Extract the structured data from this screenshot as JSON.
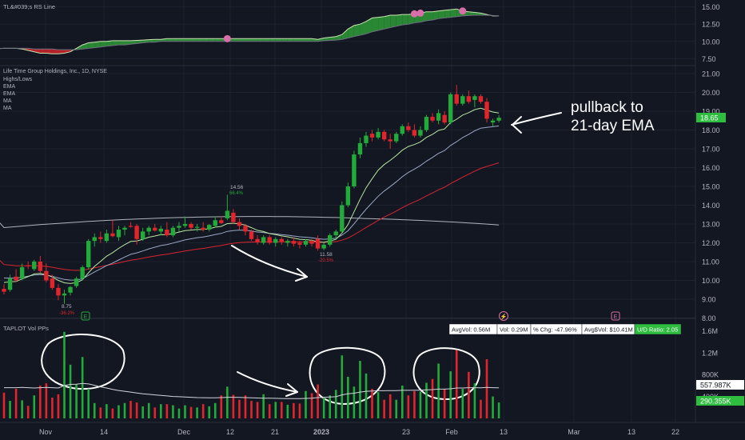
{
  "colors": {
    "background": "#131722",
    "grid": "#1e2230",
    "axis_text": "#b2b5be",
    "up": "#22ab3a",
    "down": "#e0252c",
    "ema_fast": "#b7e6a1",
    "ema_slow": "#9aa7c4",
    "ma_50": "#d9242f",
    "ma_200": "#b0b3bb",
    "rs_fill_up": "#2b8d36",
    "rs_fill_down": "#c0222a",
    "rs_marker": "#d86fa8",
    "annotation": "#ffffff",
    "price_badge": "#2ebd3e",
    "ud_badge": "#2ebd3e"
  },
  "rs_panel": {
    "title": "TL&#039;s RS Line",
    "y_ticks": [
      "15.00",
      "12.50",
      "10.00",
      "7.50"
    ]
  },
  "price_panel": {
    "title": "Life Time Group Holdings, Inc., 1D, NYSE",
    "legend": [
      "Highs/Lows",
      "EMA",
      "EMA",
      "MA",
      "MA"
    ],
    "y_ticks": [
      "21.00",
      "20.00",
      "19.00",
      "18.00",
      "17.00",
      "16.00",
      "15.00",
      "14.00",
      "13.00",
      "12.00",
      "11.00",
      "10.00",
      "9.00",
      "8.00"
    ],
    "last_price": "18.65",
    "high_label": {
      "price": "14.56",
      "pct": "66.4%"
    },
    "low_label_1": {
      "price": "8.75",
      "pct": "-36.2%"
    },
    "low_label_2": {
      "price": "11.58",
      "pct": "-20.5%"
    },
    "annotation_line1": "pullback to",
    "annotation_line2": "21-day EMA",
    "event_marker_1": "E",
    "event_marker_2": "E",
    "dividend_marker": "⚡"
  },
  "volume_panel": {
    "title": "TAPLOT Vol PPs",
    "stats": [
      {
        "label": "AvgVol: 0.56M"
      },
      {
        "label": "Vol: 0.29M"
      },
      {
        "label": "% Chg: -47.96%"
      },
      {
        "label": "Avg$Vol: $10.41M"
      },
      {
        "label": "U/D Ratio: 2.05"
      }
    ],
    "y_ticks": [
      "1.6M",
      "1.2M",
      "800K",
      "400K"
    ],
    "avg_badge": "557.987K",
    "vol_badge": "290.355K"
  },
  "x_axis": {
    "ticks": [
      "Nov",
      "14",
      "Dec",
      "12",
      "21",
      "2023",
      "23",
      "Feb",
      "13",
      "Mar",
      "13",
      "22"
    ]
  },
  "chart_data": {
    "type": "candlestick",
    "title": "Life Time Group Holdings, Inc., 1D, NYSE",
    "ylim": [
      7.5,
      21.5
    ],
    "volume_ylim": [
      0,
      1650000
    ],
    "rs_ylim": [
      6.5,
      16.0
    ],
    "candles": [
      {
        "o": 9.55,
        "h": 9.8,
        "l": 9.25,
        "c": 9.4
      },
      {
        "o": 9.5,
        "h": 10.3,
        "l": 9.4,
        "c": 10.1
      },
      {
        "o": 10.2,
        "h": 10.6,
        "l": 9.9,
        "c": 10.0
      },
      {
        "o": 10.1,
        "h": 10.9,
        "l": 10.0,
        "c": 10.7
      },
      {
        "o": 10.8,
        "h": 11.0,
        "l": 10.6,
        "c": 10.75
      },
      {
        "o": 10.6,
        "h": 11.1,
        "l": 10.5,
        "c": 11.0
      },
      {
        "o": 11.0,
        "h": 11.3,
        "l": 10.4,
        "c": 10.5
      },
      {
        "o": 10.5,
        "h": 10.9,
        "l": 9.9,
        "c": 10.0
      },
      {
        "o": 10.1,
        "h": 10.3,
        "l": 9.5,
        "c": 9.6
      },
      {
        "o": 9.6,
        "h": 9.8,
        "l": 8.95,
        "c": 9.2
      },
      {
        "o": 9.2,
        "h": 9.5,
        "l": 8.75,
        "c": 9.3
      },
      {
        "o": 9.35,
        "h": 9.7,
        "l": 9.2,
        "c": 9.65
      },
      {
        "o": 9.7,
        "h": 10.2,
        "l": 9.6,
        "c": 10.1
      },
      {
        "o": 10.1,
        "h": 10.8,
        "l": 10.0,
        "c": 10.7
      },
      {
        "o": 10.7,
        "h": 12.2,
        "l": 10.6,
        "c": 12.1
      },
      {
        "o": 12.1,
        "h": 12.5,
        "l": 11.8,
        "c": 12.3
      },
      {
        "o": 12.3,
        "h": 12.6,
        "l": 12.0,
        "c": 12.2
      },
      {
        "o": 12.1,
        "h": 12.7,
        "l": 12.0,
        "c": 12.5
      },
      {
        "o": 12.5,
        "h": 13.2,
        "l": 12.3,
        "c": 12.35
      },
      {
        "o": 12.3,
        "h": 12.9,
        "l": 12.1,
        "c": 12.7
      },
      {
        "o": 12.7,
        "h": 12.9,
        "l": 12.4,
        "c": 12.8
      },
      {
        "o": 12.9,
        "h": 13.1,
        "l": 12.8,
        "c": 12.85
      },
      {
        "o": 12.9,
        "h": 13.0,
        "l": 11.9,
        "c": 12.2
      },
      {
        "o": 12.2,
        "h": 12.8,
        "l": 12.1,
        "c": 12.6
      },
      {
        "o": 12.6,
        "h": 12.9,
        "l": 12.4,
        "c": 12.8
      },
      {
        "o": 12.8,
        "h": 13.0,
        "l": 12.6,
        "c": 12.65
      },
      {
        "o": 12.6,
        "h": 12.9,
        "l": 12.4,
        "c": 12.75
      },
      {
        "o": 12.7,
        "h": 13.1,
        "l": 12.3,
        "c": 12.4
      },
      {
        "o": 12.4,
        "h": 12.9,
        "l": 12.3,
        "c": 12.8
      },
      {
        "o": 12.8,
        "h": 13.1,
        "l": 12.6,
        "c": 12.9
      },
      {
        "o": 12.9,
        "h": 13.4,
        "l": 12.8,
        "c": 13.0
      },
      {
        "o": 13.0,
        "h": 13.1,
        "l": 12.7,
        "c": 12.8
      },
      {
        "o": 12.8,
        "h": 13.0,
        "l": 12.6,
        "c": 12.85
      },
      {
        "o": 12.8,
        "h": 13.1,
        "l": 12.6,
        "c": 12.7
      },
      {
        "o": 12.7,
        "h": 13.0,
        "l": 12.6,
        "c": 12.95
      },
      {
        "o": 12.9,
        "h": 13.4,
        "l": 12.8,
        "c": 13.2
      },
      {
        "o": 13.2,
        "h": 13.4,
        "l": 13.0,
        "c": 13.05
      },
      {
        "o": 13.3,
        "h": 14.56,
        "l": 13.2,
        "c": 13.7
      },
      {
        "o": 13.6,
        "h": 13.8,
        "l": 13.0,
        "c": 13.1
      },
      {
        "o": 13.1,
        "h": 13.3,
        "l": 12.7,
        "c": 12.9
      },
      {
        "o": 12.9,
        "h": 13.0,
        "l": 12.4,
        "c": 12.6
      },
      {
        "o": 12.6,
        "h": 12.7,
        "l": 12.1,
        "c": 12.2
      },
      {
        "o": 12.2,
        "h": 12.4,
        "l": 11.9,
        "c": 12.05
      },
      {
        "o": 12.0,
        "h": 12.4,
        "l": 11.9,
        "c": 12.3
      },
      {
        "o": 12.3,
        "h": 12.4,
        "l": 11.9,
        "c": 12.0
      },
      {
        "o": 12.0,
        "h": 12.3,
        "l": 11.8,
        "c": 12.2
      },
      {
        "o": 12.2,
        "h": 12.3,
        "l": 11.9,
        "c": 12.05
      },
      {
        "o": 12.0,
        "h": 12.2,
        "l": 11.8,
        "c": 12.1
      },
      {
        "o": 12.1,
        "h": 12.3,
        "l": 11.8,
        "c": 11.95
      },
      {
        "o": 12.0,
        "h": 12.1,
        "l": 11.7,
        "c": 11.9
      },
      {
        "o": 11.9,
        "h": 12.2,
        "l": 11.8,
        "c": 12.1
      },
      {
        "o": 12.1,
        "h": 12.2,
        "l": 11.8,
        "c": 11.95
      },
      {
        "o": 12.2,
        "h": 12.4,
        "l": 11.58,
        "c": 11.7
      },
      {
        "o": 11.7,
        "h": 12.0,
        "l": 11.6,
        "c": 11.9
      },
      {
        "o": 11.9,
        "h": 12.5,
        "l": 11.8,
        "c": 12.4
      },
      {
        "o": 12.4,
        "h": 12.7,
        "l": 12.2,
        "c": 12.6
      },
      {
        "o": 12.6,
        "h": 14.2,
        "l": 12.5,
        "c": 14.0
      },
      {
        "o": 14.0,
        "h": 15.2,
        "l": 13.9,
        "c": 15.0
      },
      {
        "o": 15.0,
        "h": 16.9,
        "l": 14.9,
        "c": 16.7
      },
      {
        "o": 16.7,
        "h": 17.6,
        "l": 16.5,
        "c": 17.3
      },
      {
        "o": 17.3,
        "h": 17.9,
        "l": 17.1,
        "c": 17.7
      },
      {
        "o": 17.8,
        "h": 18.0,
        "l": 17.4,
        "c": 17.6
      },
      {
        "o": 17.6,
        "h": 18.1,
        "l": 17.5,
        "c": 17.9
      },
      {
        "o": 17.9,
        "h": 18.0,
        "l": 17.4,
        "c": 17.5
      },
      {
        "o": 17.5,
        "h": 17.8,
        "l": 17.0,
        "c": 17.4
      },
      {
        "o": 17.4,
        "h": 17.9,
        "l": 17.3,
        "c": 17.8
      },
      {
        "o": 17.8,
        "h": 18.3,
        "l": 17.7,
        "c": 18.2
      },
      {
        "o": 18.2,
        "h": 18.4,
        "l": 17.9,
        "c": 18.0
      },
      {
        "o": 18.0,
        "h": 18.3,
        "l": 17.6,
        "c": 17.7
      },
      {
        "o": 17.7,
        "h": 18.2,
        "l": 17.6,
        "c": 18.0
      },
      {
        "o": 18.0,
        "h": 18.8,
        "l": 17.9,
        "c": 18.7
      },
      {
        "o": 18.7,
        "h": 18.9,
        "l": 18.4,
        "c": 18.5
      },
      {
        "o": 18.5,
        "h": 19.1,
        "l": 18.3,
        "c": 18.9
      },
      {
        "o": 18.8,
        "h": 19.0,
        "l": 18.3,
        "c": 18.4
      },
      {
        "o": 18.4,
        "h": 20.0,
        "l": 18.3,
        "c": 19.9
      },
      {
        "o": 19.9,
        "h": 20.4,
        "l": 19.3,
        "c": 19.4
      },
      {
        "o": 19.4,
        "h": 19.9,
        "l": 19.3,
        "c": 19.8
      },
      {
        "o": 19.8,
        "h": 20.1,
        "l": 19.4,
        "c": 19.5
      },
      {
        "o": 19.6,
        "h": 19.9,
        "l": 19.2,
        "c": 19.8
      },
      {
        "o": 19.8,
        "h": 19.9,
        "l": 19.4,
        "c": 19.5
      },
      {
        "o": 19.5,
        "h": 19.7,
        "l": 18.4,
        "c": 18.6
      },
      {
        "o": 18.4,
        "h": 18.6,
        "l": 18.2,
        "c": 18.5
      },
      {
        "o": 18.5,
        "h": 18.8,
        "l": 18.4,
        "c": 18.65
      }
    ],
    "volumes": [
      470000,
      320000,
      540000,
      330000,
      230000,
      420000,
      600000,
      640000,
      380000,
      440000,
      1580000,
      980000,
      620000,
      1120000,
      540000,
      280000,
      200000,
      260000,
      180000,
      240000,
      280000,
      320000,
      290000,
      220000,
      280000,
      200000,
      260000,
      260000,
      240000,
      180000,
      240000,
      210000,
      200000,
      260000,
      220000,
      280000,
      420000,
      580000,
      430000,
      340000,
      420000,
      320000,
      300000,
      440000,
      260000,
      300000,
      300000,
      250000,
      280000,
      270000,
      500000,
      460000,
      620000,
      380000,
      420000,
      520000,
      1150000,
      760000,
      580000,
      1050000,
      820000,
      540000,
      480000,
      340000,
      440000,
      340000,
      600000,
      420000,
      500000,
      490000,
      650000,
      720000,
      1000000,
      540000,
      860000,
      1250000,
      540000,
      850000,
      640000,
      340000,
      1080000,
      400000,
      290000
    ],
    "volume_avg": [
      560000,
      560000,
      560000,
      565000,
      560000,
      555000,
      560000,
      565000,
      560000,
      555000,
      600000,
      620000,
      625000,
      640000,
      630000,
      605000,
      575000,
      555000,
      530000,
      510000,
      495000,
      480000,
      465000,
      450000,
      440000,
      430000,
      420000,
      410000,
      400000,
      395000,
      390000,
      385000,
      380000,
      378000,
      375000,
      375000,
      380000,
      385000,
      385000,
      382000,
      380000,
      376000,
      372000,
      370000,
      368000,
      366000,
      364000,
      362000,
      360000,
      360000,
      365000,
      370000,
      380000,
      385000,
      390000,
      395000,
      430000,
      450000,
      460000,
      480000,
      495000,
      500000,
      505000,
      505000,
      508000,
      508000,
      512000,
      512000,
      515000,
      515000,
      520000,
      525000,
      535000,
      535000,
      540000,
      555000,
      555000,
      560000,
      560000,
      558000,
      565000,
      560000,
      557987
    ],
    "rs_line": [
      9.0,
      9.0,
      9.0,
      8.9,
      8.7,
      8.5,
      8.3,
      8.3,
      8.2,
      8.2,
      8.3,
      8.5,
      9.0,
      9.5,
      9.8,
      9.9,
      10.0,
      10.0,
      10.1,
      10.1,
      10.1,
      10.1,
      10.15,
      10.2,
      10.25,
      10.3,
      10.3,
      10.4,
      10.4,
      10.4,
      10.4,
      10.4,
      10.4,
      10.4,
      10.4,
      10.4,
      10.4,
      10.4,
      10.4,
      10.4,
      10.4,
      10.4,
      10.4,
      10.4,
      10.4,
      10.4,
      10.4,
      10.4,
      10.4,
      10.4,
      10.4,
      10.4,
      10.3,
      10.5,
      10.6,
      10.7,
      11.0,
      11.8,
      12.3,
      12.5,
      12.9,
      13.4,
      13.5,
      13.6,
      13.8,
      13.8,
      13.9,
      13.9,
      14.0,
      14.1,
      14.3,
      14.3,
      14.4,
      14.5,
      14.6,
      14.7,
      14.4,
      14.3,
      14.2,
      14.1,
      13.9,
      13.7,
      13.7
    ],
    "rs_base": [
      9.0,
      9.0,
      9.0,
      9.0,
      9.0,
      8.9,
      8.9,
      8.9,
      8.9,
      8.8,
      8.8,
      8.8,
      8.8,
      8.9,
      9.0,
      9.1,
      9.2,
      9.3,
      9.4,
      9.5,
      9.5,
      9.6,
      9.7,
      9.8,
      9.9,
      9.9,
      10.0,
      10.0,
      10.0,
      10.0,
      10.0,
      10.0,
      10.0,
      10.0,
      10.0,
      10.0,
      10.0,
      10.0,
      10.0,
      10.0,
      10.0,
      10.0,
      10.0,
      10.0,
      10.0,
      10.0,
      10.0,
      10.0,
      10.0,
      10.0,
      10.0,
      10.0,
      10.0,
      10.1,
      10.15,
      10.2,
      10.3,
      10.5,
      10.7,
      10.9,
      11.1,
      11.4,
      11.6,
      11.8,
      12.0,
      12.2,
      12.4,
      12.5,
      12.7,
      12.8,
      13.0,
      13.1,
      13.3,
      13.4,
      13.5,
      13.6,
      13.7,
      13.75,
      13.8,
      13.8,
      13.8,
      13.75,
      13.7
    ],
    "rs_markers": [
      37,
      68,
      69,
      76
    ]
  }
}
